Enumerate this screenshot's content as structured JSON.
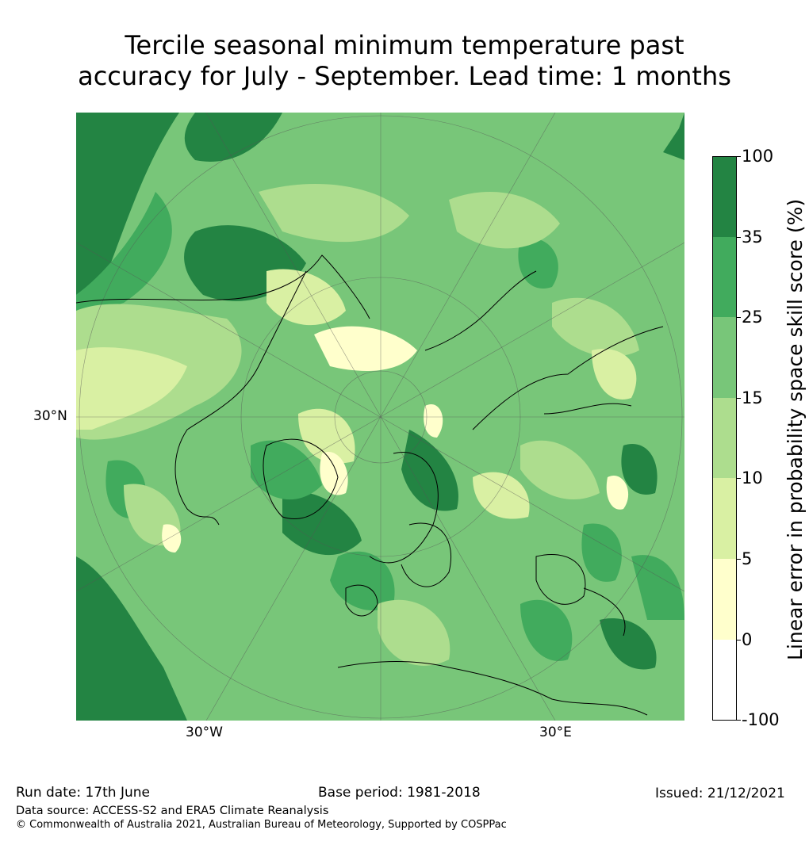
{
  "title_line1": "Tercile seasonal minimum temperature past",
  "title_line2": "accuracy for July - September. Lead time: 1 months",
  "map": {
    "label_lat": "30°N",
    "label_lon_west": "30°W",
    "label_lon_east": "30°E"
  },
  "colorbar": {
    "label": "Linear error in probability space skill score (%)",
    "ticks": [
      "100",
      "35",
      "25",
      "15",
      "10",
      "5",
      "0",
      "-100"
    ],
    "colors": [
      "#238443",
      "#41ab5d",
      "#78c679",
      "#addd8e",
      "#d9f0a3",
      "#ffffcc",
      "#ffffff"
    ]
  },
  "footer": {
    "run_date": "Run date: 17th June",
    "base_period": "Base period: 1981-2018",
    "issued": "Issued: 21/12/2021",
    "data_source": "Data source: ACCESS-S2 and ERA5 Climate Reanalysis",
    "copyright": "© Commonwealth of Australia 2021, Australian Bureau of Meteorology, Supported by COSPPac"
  }
}
